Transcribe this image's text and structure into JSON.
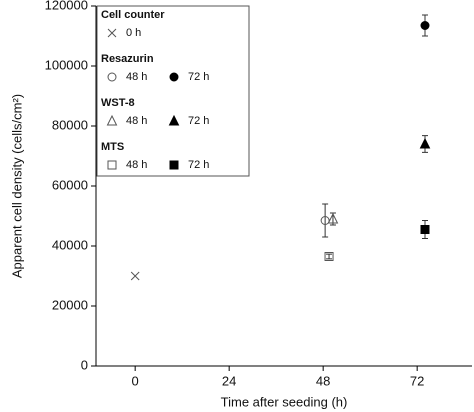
{
  "chart_data": {
    "type": "scatter",
    "x_label": "Time after seeding (h)",
    "y_label": "Apparent cell density (cells/cm²)",
    "xlim": [
      -10,
      86
    ],
    "xticks": [
      0,
      24,
      48,
      72
    ],
    "ylim": [
      0,
      120000
    ],
    "yticks": [
      0,
      20000,
      40000,
      60000,
      80000,
      100000,
      120000
    ],
    "groups": [
      {
        "name": "Cell counter",
        "series": [
          {
            "name": "0 h",
            "marker": "cross",
            "filled": false,
            "color": "#555555",
            "x": [
              0
            ],
            "values": [
              30000
            ]
          }
        ]
      },
      {
        "name": "Resazurin",
        "series": [
          {
            "name": "48 h",
            "marker": "circle",
            "filled": false,
            "color": "#555555",
            "x": [
              48.5
            ],
            "values": [
              48500
            ],
            "errors": [
              5500
            ]
          },
          {
            "name": "72 h",
            "marker": "circle",
            "filled": true,
            "color": "#000000",
            "x": [
              74
            ],
            "values": [
              113500
            ],
            "errors": [
              3500
            ]
          }
        ]
      },
      {
        "name": "WST-8",
        "series": [
          {
            "name": "48 h",
            "marker": "triangle",
            "filled": false,
            "color": "#555555",
            "x": [
              50.5
            ],
            "values": [
              49000
            ],
            "errors": [
              2000
            ]
          },
          {
            "name": "72 h",
            "marker": "triangle",
            "filled": true,
            "color": "#000000",
            "x": [
              74
            ],
            "values": [
              74000
            ],
            "errors": [
              2800
            ]
          }
        ]
      },
      {
        "name": "MTS",
        "series": [
          {
            "name": "48 h",
            "marker": "square",
            "filled": false,
            "color": "#555555",
            "x": [
              49.5
            ],
            "values": [
              36500
            ],
            "errors": [
              800
            ]
          },
          {
            "name": "72 h",
            "marker": "square",
            "filled": true,
            "color": "#000000",
            "x": [
              74
            ],
            "values": [
              45500
            ],
            "errors": [
              3000
            ]
          }
        ]
      }
    ]
  }
}
